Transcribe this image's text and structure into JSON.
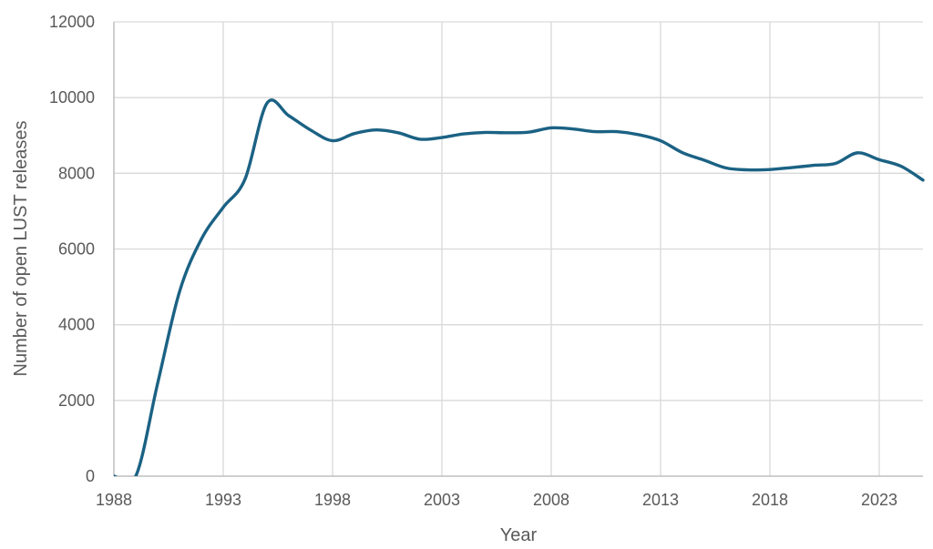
{
  "chart_data": {
    "type": "line",
    "title": "",
    "xlabel": "Year",
    "ylabel": "Number of open LUST releases",
    "xlim": [
      1988,
      2025
    ],
    "ylim": [
      0,
      12000
    ],
    "x_ticks": [
      1988,
      1993,
      1998,
      2003,
      2008,
      2013,
      2018,
      2023
    ],
    "y_ticks": [
      0,
      2000,
      4000,
      6000,
      8000,
      10000,
      12000
    ],
    "grid": true,
    "legend": "none",
    "smooth": true,
    "series": [
      {
        "name": "Open LUST releases",
        "color": "#1b6284",
        "x": [
          1988,
          1989,
          1990,
          1991,
          1992,
          1993,
          1994,
          1995,
          1996,
          1997,
          1998,
          1999,
          2000,
          2001,
          2002,
          2003,
          2004,
          2005,
          2006,
          2007,
          2008,
          2009,
          2010,
          2011,
          2012,
          2013,
          2014,
          2015,
          2016,
          2017,
          2018,
          2019,
          2020,
          2021,
          2022,
          2023,
          2024,
          2025
        ],
        "values": [
          0,
          0,
          2450,
          4870,
          6260,
          7100,
          7850,
          9850,
          9520,
          9140,
          8860,
          9050,
          9145,
          9070,
          8900,
          8945,
          9040,
          9080,
          9070,
          9090,
          9200,
          9170,
          9100,
          9100,
          9020,
          8860,
          8545,
          8345,
          8140,
          8090,
          8100,
          8150,
          8210,
          8260,
          8540,
          8360,
          8185,
          7820
        ]
      }
    ]
  }
}
